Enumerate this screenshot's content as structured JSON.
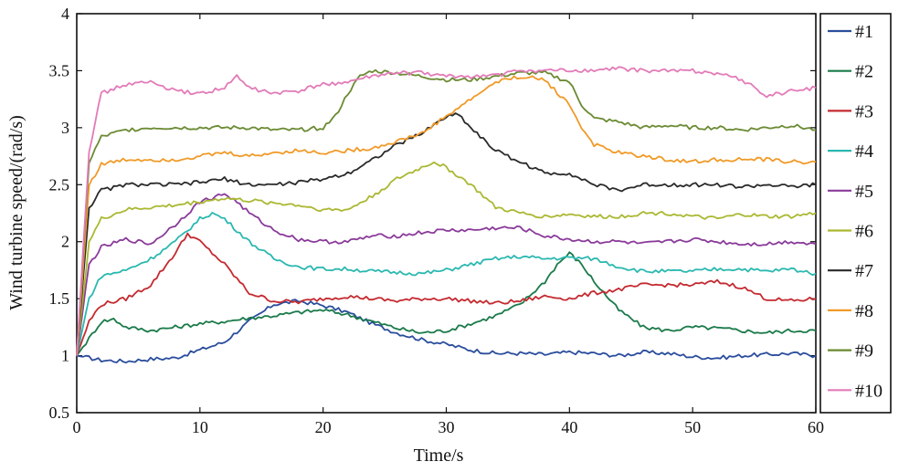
{
  "chart_data": {
    "type": "line",
    "title": "",
    "xlabel": "Time/s",
    "ylabel": "Wind turbine speed/(rad/s)",
    "xlim": [
      0,
      60
    ],
    "ylim": [
      0.5,
      4
    ],
    "xticks": [
      0,
      10,
      20,
      30,
      40,
      50,
      60
    ],
    "yticks": [
      0.5,
      1,
      1.5,
      2,
      2.5,
      3,
      3.5,
      4
    ],
    "xtick_labels": [
      "0",
      "10",
      "20",
      "30",
      "40",
      "50",
      "60"
    ],
    "ytick_labels": [
      "0.5",
      "1",
      "1.5",
      "2",
      "2.5",
      "3",
      "3.5",
      "4"
    ],
    "grid": false,
    "legend_position": "right-outside",
    "series": [
      {
        "name": "#1",
        "color": "#2a4d9c",
        "x": [
          0,
          2,
          4,
          6,
          8,
          10,
          12,
          14,
          16,
          18,
          20,
          22,
          24,
          26,
          28,
          30,
          32,
          34,
          36,
          38,
          40,
          42,
          44,
          46,
          48,
          50,
          52,
          54,
          56,
          58,
          60
        ],
        "y": [
          1.0,
          0.96,
          0.95,
          0.97,
          0.98,
          1.05,
          1.12,
          1.3,
          1.45,
          1.48,
          1.44,
          1.38,
          1.28,
          1.2,
          1.14,
          1.1,
          1.05,
          1.02,
          1.02,
          1.01,
          1.03,
          1.02,
          1.0,
          1.03,
          1.02,
          0.99,
          0.98,
          1.0,
          1.01,
          1.02,
          1.0
        ]
      },
      {
        "name": "#2",
        "color": "#1a7a4a",
        "x": [
          0,
          1,
          2,
          3,
          4,
          6,
          8,
          10,
          12,
          14,
          16,
          18,
          20,
          22,
          24,
          26,
          28,
          30,
          32,
          34,
          36,
          38,
          39,
          40,
          41,
          42,
          44,
          46,
          48,
          50,
          52,
          54,
          56,
          58,
          60
        ],
        "y": [
          1.0,
          1.15,
          1.3,
          1.32,
          1.25,
          1.22,
          1.25,
          1.28,
          1.3,
          1.33,
          1.35,
          1.38,
          1.4,
          1.36,
          1.3,
          1.24,
          1.2,
          1.22,
          1.28,
          1.35,
          1.45,
          1.65,
          1.8,
          1.9,
          1.8,
          1.65,
          1.4,
          1.25,
          1.22,
          1.25,
          1.24,
          1.22,
          1.2,
          1.22,
          1.22
        ]
      },
      {
        "name": "#3",
        "color": "#c42a30",
        "x": [
          0,
          1,
          2,
          4,
          6,
          8,
          9,
          10,
          12,
          14,
          16,
          18,
          20,
          22,
          24,
          26,
          28,
          30,
          32,
          34,
          36,
          38,
          40,
          42,
          44,
          46,
          48,
          50,
          52,
          54,
          56,
          58,
          60
        ],
        "y": [
          1.0,
          1.3,
          1.45,
          1.5,
          1.62,
          1.9,
          2.07,
          2.0,
          1.8,
          1.55,
          1.48,
          1.47,
          1.5,
          1.52,
          1.5,
          1.48,
          1.5,
          1.5,
          1.48,
          1.46,
          1.48,
          1.52,
          1.5,
          1.55,
          1.58,
          1.62,
          1.62,
          1.62,
          1.65,
          1.6,
          1.5,
          1.48,
          1.5
        ]
      },
      {
        "name": "#4",
        "color": "#2ab8b0",
        "x": [
          0,
          1,
          2,
          4,
          6,
          8,
          10,
          11,
          12,
          14,
          16,
          18,
          20,
          22,
          24,
          26,
          28,
          30,
          32,
          34,
          36,
          38,
          40,
          42,
          44,
          46,
          48,
          50,
          52,
          54,
          56,
          58,
          60
        ],
        "y": [
          1.0,
          1.5,
          1.7,
          1.75,
          1.85,
          2.0,
          2.2,
          2.25,
          2.2,
          2.0,
          1.85,
          1.78,
          1.76,
          1.76,
          1.74,
          1.73,
          1.72,
          1.75,
          1.8,
          1.85,
          1.87,
          1.85,
          1.86,
          1.85,
          1.78,
          1.74,
          1.74,
          1.74,
          1.76,
          1.76,
          1.74,
          1.76,
          1.72
        ]
      },
      {
        "name": "#5",
        "color": "#8a3a9a",
        "x": [
          0,
          1,
          2,
          4,
          6,
          8,
          10,
          12,
          13,
          14,
          16,
          18,
          20,
          22,
          24,
          26,
          28,
          30,
          32,
          34,
          36,
          38,
          40,
          42,
          44,
          46,
          48,
          50,
          52,
          54,
          56,
          58,
          60
        ],
        "y": [
          1.0,
          1.8,
          1.95,
          2.02,
          1.98,
          2.15,
          2.35,
          2.42,
          2.35,
          2.25,
          2.1,
          2.02,
          2.0,
          2.0,
          2.05,
          2.05,
          2.08,
          2.1,
          2.1,
          2.12,
          2.12,
          2.05,
          2.02,
          2.0,
          2.0,
          1.98,
          2.0,
          2.02,
          2.0,
          1.98,
          1.98,
          2.0,
          1.98
        ]
      },
      {
        "name": "#6",
        "color": "#aab832",
        "x": [
          0,
          1,
          2,
          4,
          6,
          8,
          10,
          12,
          14,
          16,
          18,
          20,
          22,
          24,
          26,
          28,
          29,
          30,
          32,
          34,
          36,
          38,
          40,
          42,
          44,
          46,
          48,
          50,
          52,
          54,
          56,
          58,
          60
        ],
        "y": [
          1.0,
          2.0,
          2.2,
          2.28,
          2.3,
          2.32,
          2.35,
          2.38,
          2.36,
          2.34,
          2.32,
          2.28,
          2.28,
          2.4,
          2.55,
          2.65,
          2.7,
          2.65,
          2.5,
          2.3,
          2.25,
          2.22,
          2.24,
          2.22,
          2.22,
          2.25,
          2.25,
          2.22,
          2.2,
          2.24,
          2.22,
          2.22,
          2.25
        ]
      },
      {
        "name": "#7",
        "color": "#2a2a2a",
        "x": [
          0,
          1,
          2,
          4,
          6,
          8,
          10,
          12,
          14,
          16,
          18,
          20,
          22,
          24,
          26,
          28,
          30,
          31,
          32,
          34,
          36,
          38,
          40,
          42,
          44,
          46,
          48,
          50,
          52,
          54,
          56,
          58,
          60
        ],
        "y": [
          1.0,
          2.3,
          2.45,
          2.5,
          2.5,
          2.5,
          2.52,
          2.55,
          2.5,
          2.5,
          2.52,
          2.55,
          2.6,
          2.72,
          2.85,
          2.95,
          3.1,
          3.12,
          3.0,
          2.8,
          2.7,
          2.6,
          2.6,
          2.5,
          2.45,
          2.5,
          2.5,
          2.5,
          2.5,
          2.48,
          2.5,
          2.48,
          2.5
        ]
      },
      {
        "name": "#8",
        "color": "#f09a28",
        "x": [
          0,
          1,
          2,
          4,
          6,
          8,
          10,
          12,
          14,
          16,
          18,
          20,
          22,
          24,
          26,
          28,
          30,
          32,
          34,
          36,
          38,
          40,
          41,
          42,
          44,
          46,
          48,
          50,
          52,
          54,
          56,
          58,
          60
        ],
        "y": [
          1.0,
          2.5,
          2.68,
          2.72,
          2.72,
          2.72,
          2.75,
          2.78,
          2.75,
          2.78,
          2.8,
          2.78,
          2.8,
          2.82,
          2.88,
          2.95,
          3.1,
          3.25,
          3.4,
          3.45,
          3.42,
          3.2,
          3.0,
          2.85,
          2.78,
          2.75,
          2.72,
          2.7,
          2.72,
          2.72,
          2.72,
          2.7,
          2.7
        ]
      },
      {
        "name": "#9",
        "color": "#6a8a32",
        "x": [
          0,
          1,
          2,
          4,
          6,
          8,
          10,
          12,
          14,
          16,
          18,
          20,
          21,
          22,
          23,
          24,
          26,
          28,
          30,
          32,
          34,
          36,
          38,
          40,
          41,
          42,
          44,
          46,
          48,
          50,
          52,
          54,
          56,
          58,
          60
        ],
        "y": [
          1.0,
          2.7,
          2.92,
          2.98,
          3.0,
          3.0,
          3.0,
          3.0,
          3.0,
          2.98,
          2.98,
          3.0,
          3.1,
          3.3,
          3.45,
          3.5,
          3.48,
          3.45,
          3.42,
          3.42,
          3.45,
          3.48,
          3.48,
          3.4,
          3.2,
          3.08,
          3.05,
          3.0,
          3.02,
          3.0,
          3.0,
          2.98,
          3.0,
          3.02,
          2.98
        ]
      },
      {
        "name": "#10",
        "color": "#e27bb8",
        "x": [
          0,
          1,
          2,
          4,
          6,
          8,
          10,
          12,
          13,
          14,
          16,
          18,
          20,
          22,
          24,
          26,
          28,
          30,
          32,
          34,
          36,
          38,
          40,
          42,
          44,
          46,
          48,
          50,
          52,
          54,
          56,
          58,
          60
        ],
        "y": [
          1.0,
          2.8,
          3.3,
          3.38,
          3.4,
          3.32,
          3.3,
          3.35,
          3.45,
          3.35,
          3.3,
          3.32,
          3.38,
          3.4,
          3.45,
          3.48,
          3.48,
          3.45,
          3.45,
          3.46,
          3.5,
          3.5,
          3.5,
          3.5,
          3.52,
          3.5,
          3.5,
          3.5,
          3.48,
          3.42,
          3.28,
          3.32,
          3.35
        ]
      }
    ]
  }
}
